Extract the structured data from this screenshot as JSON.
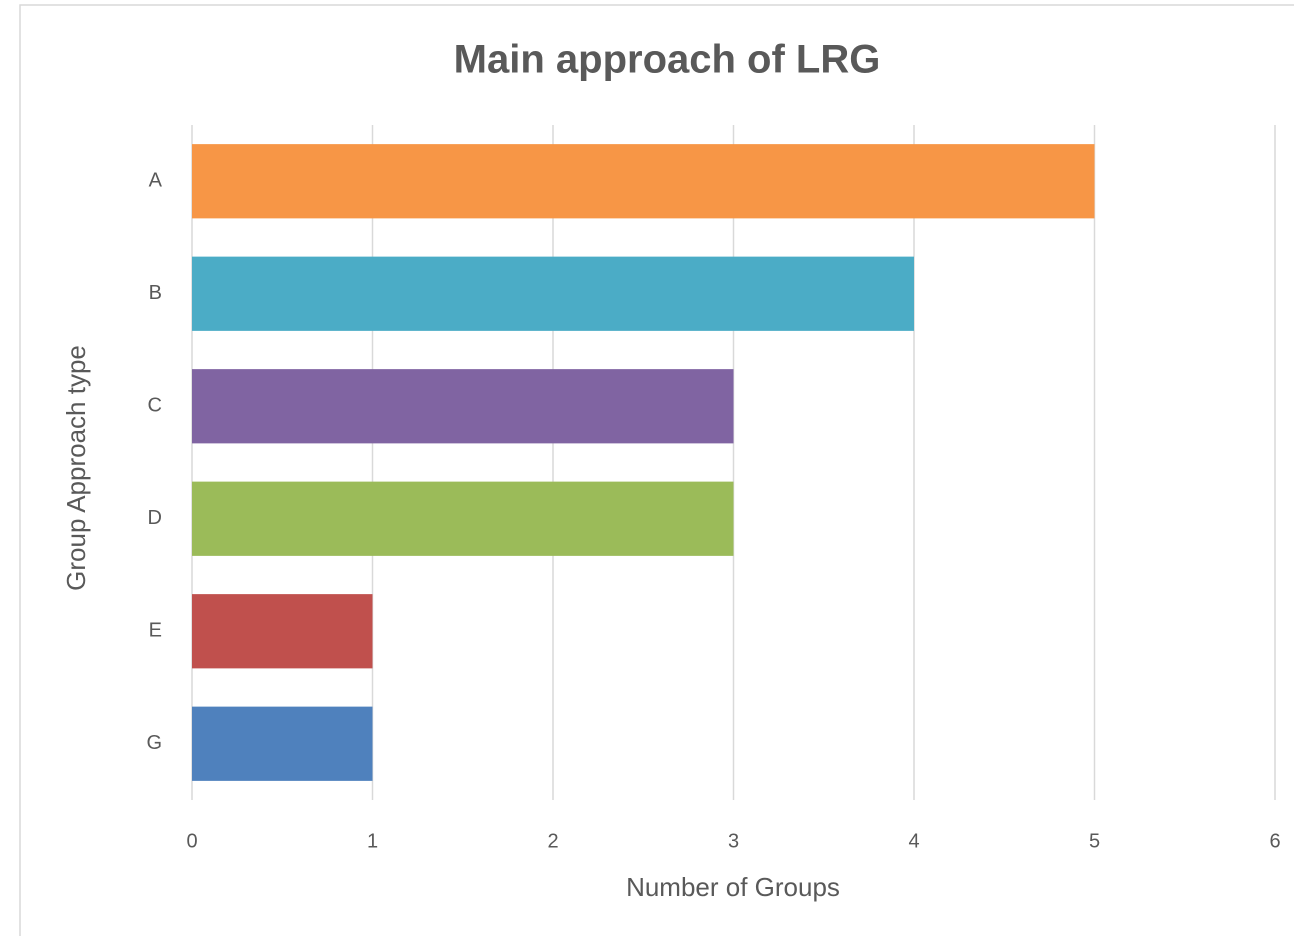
{
  "chart_data": {
    "type": "bar",
    "orientation": "horizontal",
    "title": "Main approach of LRG",
    "x_label": "Number of Groups",
    "y_label": "Group Approach type",
    "categories": [
      "A",
      "B",
      "C",
      "D",
      "E",
      "G"
    ],
    "values": [
      5,
      4,
      3,
      3,
      1,
      1
    ],
    "colors": [
      "#f79646",
      "#4bacc6",
      "#8064a2",
      "#9bbb59",
      "#c0504d",
      "#4f81bd"
    ],
    "xlim": [
      0,
      6
    ],
    "xticks": [
      0,
      1,
      2,
      3,
      4,
      5,
      6
    ],
    "grid": true
  }
}
